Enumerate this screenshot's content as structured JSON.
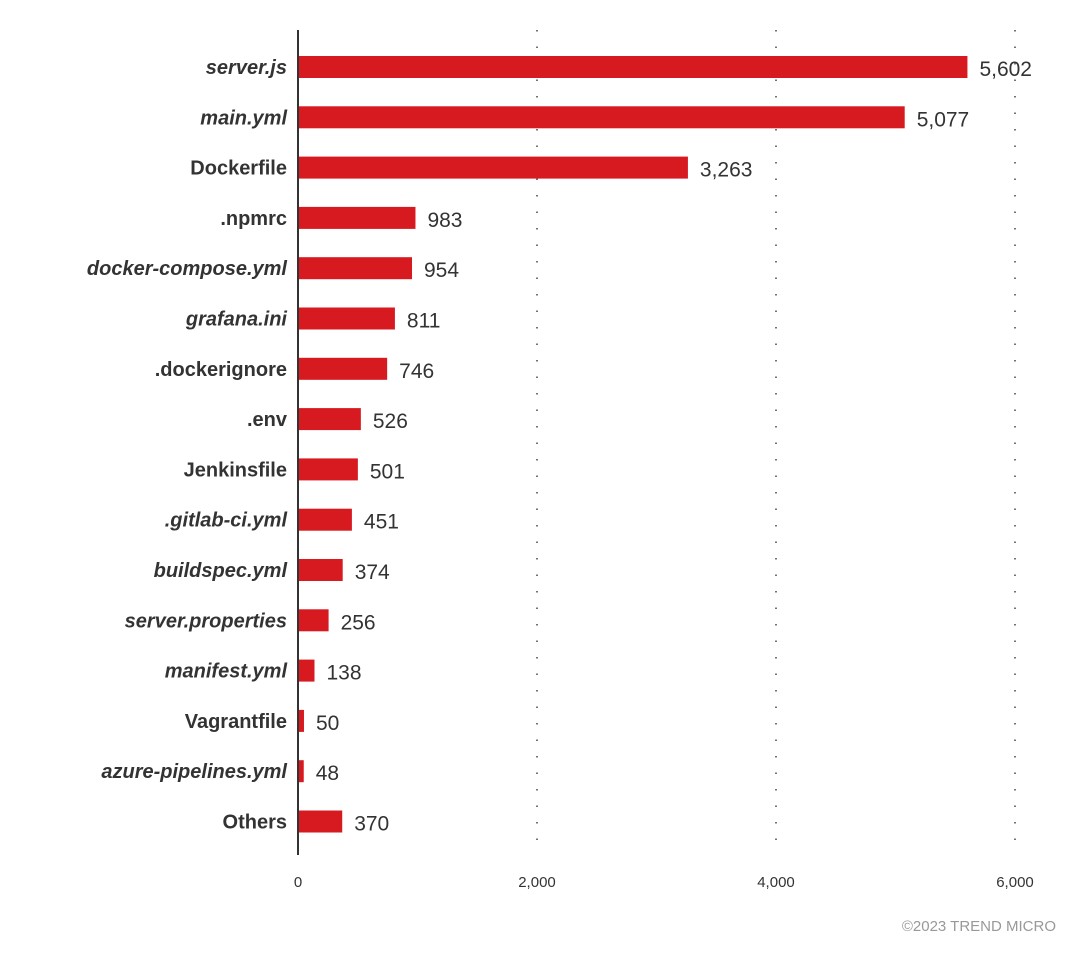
{
  "chart_data": {
    "type": "bar",
    "orientation": "horizontal",
    "categories": [
      "server.js",
      "main.yml",
      "Dockerfile",
      ".npmrc",
      "docker-compose.yml",
      "grafana.ini",
      ".dockerignore",
      ".env",
      "Jenkinsfile",
      ".gitlab-ci.yml",
      "buildspec.yml",
      "server.properties",
      "manifest.yml",
      "Vagrantfile",
      "azure-pipelines.yml",
      "Others"
    ],
    "italic": [
      true,
      true,
      false,
      false,
      true,
      true,
      false,
      false,
      false,
      true,
      true,
      true,
      true,
      false,
      true,
      false
    ],
    "values": [
      5602,
      5077,
      3263,
      983,
      954,
      811,
      746,
      526,
      501,
      451,
      374,
      256,
      138,
      50,
      48,
      370
    ],
    "value_labels": [
      "5,602",
      "5,077",
      "3,263",
      "983",
      "954",
      "811",
      "746",
      "526",
      "501",
      "451",
      "374",
      "256",
      "138",
      "50",
      "48",
      "370"
    ],
    "xlim": [
      0,
      6000
    ],
    "xticks": [
      0,
      2000,
      4000,
      6000
    ],
    "xtick_labels": [
      "0",
      "2,000",
      "4,000",
      "6,000"
    ],
    "grid": "vertical-dotted",
    "bar_color": "#d71920",
    "title": "",
    "xlabel": "",
    "ylabel": ""
  },
  "credit": "©2023 TREND MICRO"
}
